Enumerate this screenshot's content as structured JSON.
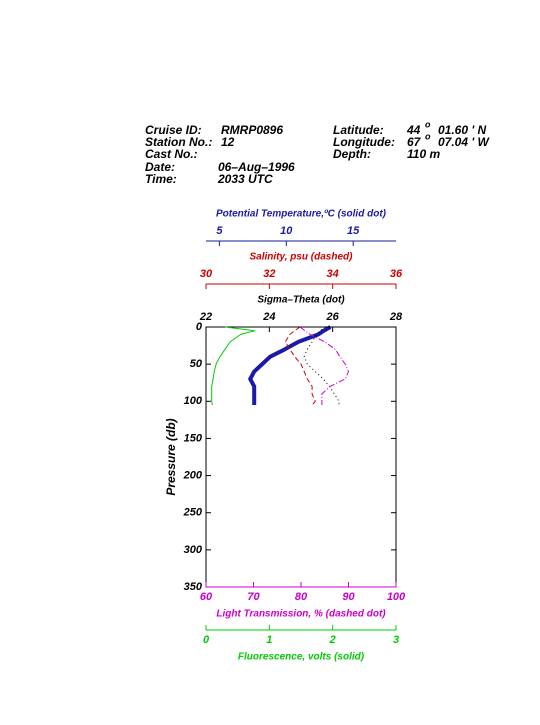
{
  "header": {
    "cruise_label": "Cruise ID:",
    "cruise": "RMRP0896",
    "station_label": "Station No.:",
    "station": "12",
    "cast_label": "Cast No.:",
    "date_label": "Date:",
    "date": "06–Aug–1996",
    "time_label": "Time:",
    "time": "2033 UTC",
    "lat_label": "Latitude:",
    "lat_deg": "44",
    "lat_mark": "o",
    "lat_min": "01.60 ' N",
    "lon_label": "Longitude:",
    "lon_deg": "67",
    "lon_mark": "o",
    "lon_min": "07.04 ' W",
    "depth_label": "Depth:",
    "depth": "110 m"
  },
  "chart_data": {
    "type": "line",
    "ylabel": "Pressure (db)",
    "y_inverted": true,
    "ylim": [
      0,
      350
    ],
    "yticks": [
      0,
      50,
      100,
      150,
      200,
      250,
      300,
      350
    ],
    "pressure": [
      0,
      5,
      10,
      20,
      30,
      40,
      50,
      60,
      70,
      80,
      90,
      100,
      105
    ],
    "axes": [
      {
        "label": "Potential Temperature,ºC (solid dot)",
        "side": "top",
        "color": "#1a1aa6",
        "style": "thick",
        "xlim": [
          4,
          18.2
        ],
        "xticks": [
          5,
          10,
          15
        ],
        "values": [
          13.3,
          12.8,
          12.4,
          10.9,
          9.9,
          8.8,
          8.2,
          7.6,
          7.3,
          7.6,
          7.6,
          7.6,
          7.6
        ]
      },
      {
        "label": "Salinity, psu  (dashed)",
        "side": "top",
        "color": "#cc0000",
        "style": "dashed",
        "xlim": [
          30,
          36
        ],
        "xticks": [
          30,
          32,
          34,
          36
        ],
        "values": [
          32.97,
          32.8,
          32.65,
          32.5,
          32.65,
          32.8,
          33.0,
          33.1,
          33.2,
          33.35,
          33.35,
          33.45,
          33.35
        ]
      },
      {
        "label": "Sigma–Theta (dot)",
        "side": "top",
        "color": "#000000",
        "style": "dotted",
        "xlim": [
          22,
          28
        ],
        "xticks": [
          22,
          24,
          26,
          28
        ],
        "values": [
          25.76,
          25.6,
          25.5,
          25.35,
          25.2,
          25.1,
          25.2,
          25.45,
          25.7,
          25.9,
          26.05,
          26.2,
          26.2
        ]
      },
      {
        "label": "Light Transmission, % (dashed dot)",
        "side": "bottom",
        "color": "#cc00cc",
        "style": "dashdot",
        "xlim": [
          60,
          100
        ],
        "xticks": [
          60,
          70,
          80,
          90,
          100
        ],
        "values": [
          79.8,
          80.8,
          81.9,
          85,
          87.2,
          88.2,
          89.3,
          90,
          89.3,
          86.1,
          84.4,
          84.4,
          84.4
        ]
      },
      {
        "label": "Fluorescence, volts (solid)",
        "side": "bottom",
        "color": "#00cc00",
        "style": "solid",
        "xlim": [
          0,
          3
        ],
        "xticks": [
          0,
          1,
          2,
          3
        ],
        "values": [
          0.3,
          0.77,
          0.55,
          0.38,
          0.3,
          0.22,
          0.16,
          0.13,
          0.11,
          0.09,
          0.09,
          0.09,
          0.1
        ]
      }
    ]
  }
}
